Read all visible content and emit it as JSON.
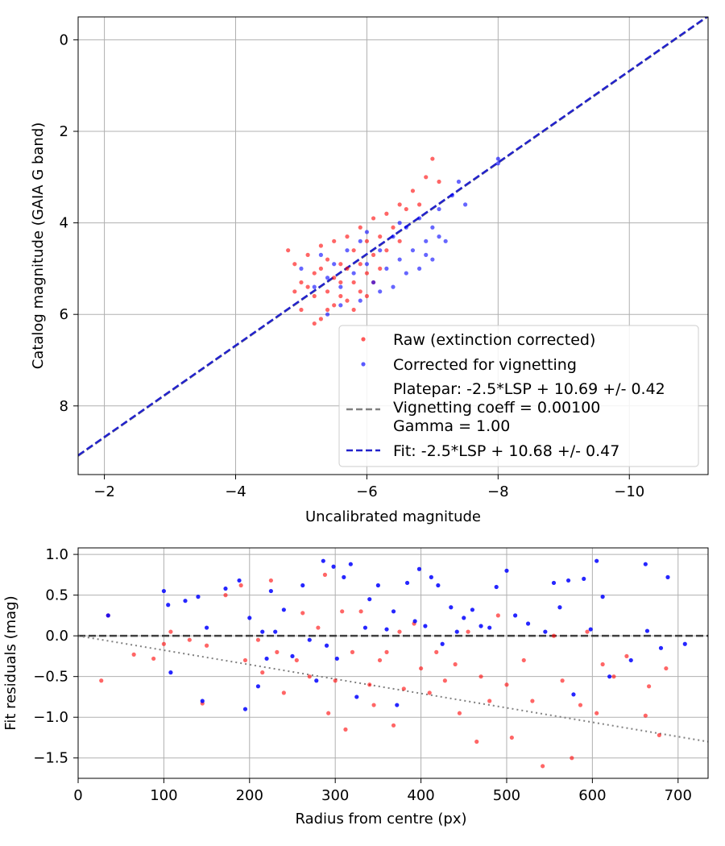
{
  "chart_data": [
    {
      "type": "scatter",
      "xlabel": "Uncalibrated magnitude",
      "ylabel": "Catalog magnitude (GAIA G band)",
      "xlim": [
        -1.6,
        -11.2
      ],
      "ylim": [
        9.5,
        -0.5
      ],
      "x_inverted": true,
      "y_inverted": true,
      "xticks": [
        -2,
        -4,
        -6,
        -8,
        -10
      ],
      "xtick_labels": [
        "−2",
        "−4",
        "−6",
        "−8",
        "−10"
      ],
      "yticks": [
        0,
        2,
        4,
        6,
        8
      ],
      "ytick_labels": [
        "0",
        "2",
        "4",
        "6",
        "8"
      ],
      "grid": true,
      "legend_position": "lower-right",
      "legend": [
        {
          "label": "Raw (extinction corrected)",
          "kind": "dot",
          "color": "#ff0000"
        },
        {
          "label": "Corrected for vignetting",
          "kind": "dot",
          "color": "#0000ff"
        },
        {
          "label": "Platepar: -2.5*LSP + 10.69 +/- 0.42\nVignetting coeff = 0.00100\nGamma = 1.00",
          "kind": "dashed-line",
          "color": "#808080"
        },
        {
          "label": "Fit: -2.5*LSP + 10.68 +/- 0.47",
          "kind": "dashed-line",
          "color": "#2222cc"
        }
      ],
      "series": [
        {
          "name": "Raw (extinction corrected)",
          "color": "#ff0000",
          "points": [
            [
              -4.8,
              4.6
            ],
            [
              -4.9,
              4.9
            ],
            [
              -5.0,
              5.3
            ],
            [
              -5.0,
              5.9
            ],
            [
              -5.1,
              4.7
            ],
            [
              -5.1,
              5.4
            ],
            [
              -5.2,
              5.1
            ],
            [
              -5.2,
              5.6
            ],
            [
              -5.3,
              4.5
            ],
            [
              -5.3,
              5.0
            ],
            [
              -5.3,
              6.1
            ],
            [
              -5.4,
              4.8
            ],
            [
              -5.4,
              5.5
            ],
            [
              -5.5,
              4.4
            ],
            [
              -5.5,
              5.2
            ],
            [
              -5.5,
              5.8
            ],
            [
              -5.6,
              4.9
            ],
            [
              -5.6,
              5.6
            ],
            [
              -5.7,
              4.3
            ],
            [
              -5.7,
              5.0
            ],
            [
              -5.7,
              5.7
            ],
            [
              -5.8,
              4.6
            ],
            [
              -5.8,
              5.3
            ],
            [
              -5.9,
              4.1
            ],
            [
              -5.9,
              4.9
            ],
            [
              -5.9,
              5.5
            ],
            [
              -6.0,
              4.4
            ],
            [
              -6.0,
              5.1
            ],
            [
              -6.1,
              3.9
            ],
            [
              -6.1,
              4.7
            ],
            [
              -6.2,
              4.3
            ],
            [
              -6.2,
              5.0
            ],
            [
              -6.3,
              3.8
            ],
            [
              -6.3,
              4.6
            ],
            [
              -6.4,
              4.1
            ],
            [
              -6.5,
              3.6
            ],
            [
              -6.5,
              4.4
            ],
            [
              -6.6,
              3.7
            ],
            [
              -6.7,
              3.3
            ],
            [
              -6.8,
              3.6
            ],
            [
              -6.9,
              3.0
            ],
            [
              -7.0,
              2.6
            ],
            [
              -7.1,
              3.1
            ],
            [
              -4.9,
              5.5
            ],
            [
              -5.2,
              6.2
            ],
            [
              -5.4,
              5.9
            ],
            [
              -5.6,
              5.3
            ],
            [
              -5.8,
              5.9
            ],
            [
              -6.0,
              5.6
            ],
            [
              -6.1,
              5.3
            ]
          ]
        },
        {
          "name": "Corrected for vignetting",
          "color": "#0000ff",
          "points": [
            [
              -5.0,
              5.0
            ],
            [
              -5.2,
              5.4
            ],
            [
              -5.3,
              4.7
            ],
            [
              -5.4,
              5.2
            ],
            [
              -5.5,
              4.9
            ],
            [
              -5.6,
              5.4
            ],
            [
              -5.7,
              4.6
            ],
            [
              -5.8,
              5.1
            ],
            [
              -5.9,
              4.4
            ],
            [
              -6.0,
              4.9
            ],
            [
              -6.1,
              5.3
            ],
            [
              -6.2,
              4.6
            ],
            [
              -6.3,
              5.0
            ],
            [
              -6.4,
              4.3
            ],
            [
              -6.5,
              4.8
            ],
            [
              -6.6,
              4.1
            ],
            [
              -6.7,
              4.6
            ],
            [
              -6.8,
              3.9
            ],
            [
              -6.9,
              4.4
            ],
            [
              -7.0,
              4.1
            ],
            [
              -7.0,
              4.8
            ],
            [
              -7.1,
              3.7
            ],
            [
              -7.2,
              4.4
            ],
            [
              -7.3,
              3.4
            ],
            [
              -7.4,
              3.1
            ],
            [
              -7.5,
              3.6
            ],
            [
              -8.0,
              2.6
            ],
            [
              -8.0,
              2.7
            ],
            [
              -6.4,
              5.4
            ],
            [
              -6.6,
              5.1
            ],
            [
              -6.8,
              5.0
            ],
            [
              -6.9,
              4.7
            ],
            [
              -5.9,
              5.7
            ],
            [
              -5.6,
              5.8
            ],
            [
              -5.4,
              6.0
            ],
            [
              -6.2,
              5.5
            ],
            [
              -7.1,
              4.3
            ],
            [
              -6.5,
              4.0
            ],
            [
              -6.0,
              4.2
            ]
          ]
        }
      ],
      "lines": [
        {
          "name": "Platepar",
          "color": "#808080",
          "style": "dashed",
          "slope": 1,
          "intercept": 10.69,
          "hidden_under": "Fit"
        },
        {
          "name": "Fit",
          "color": "#2222cc",
          "style": "dashed",
          "slope": 1,
          "intercept": 10.68
        }
      ]
    },
    {
      "type": "scatter",
      "xlabel": "Radius from centre (px)",
      "ylabel": "Fit residuals (mag)",
      "xlim": [
        0,
        735
      ],
      "ylim": [
        -1.75,
        1.08
      ],
      "xticks": [
        0,
        100,
        200,
        300,
        400,
        500,
        600,
        700
      ],
      "xtick_labels": [
        "0",
        "100",
        "200",
        "300",
        "400",
        "500",
        "600",
        "700"
      ],
      "yticks": [
        1.0,
        0.5,
        0.0,
        -0.5,
        -1.0,
        -1.5
      ],
      "ytick_labels": [
        "1.0",
        "0.5",
        "0.0",
        "−0.5",
        "−1.0",
        "−1.5"
      ],
      "grid": true,
      "series": [
        {
          "name": "Raw (extinction corrected)",
          "color": "#ff0000",
          "points": [
            [
              27,
              -0.55
            ],
            [
              35,
              0.25
            ],
            [
              65,
              -0.23
            ],
            [
              88,
              -0.28
            ],
            [
              100,
              -0.1
            ],
            [
              108,
              0.05
            ],
            [
              130,
              -0.05
            ],
            [
              145,
              -0.83
            ],
            [
              150,
              -0.12
            ],
            [
              172,
              0.5
            ],
            [
              190,
              0.62
            ],
            [
              195,
              -0.3
            ],
            [
              210,
              -0.05
            ],
            [
              215,
              -0.45
            ],
            [
              225,
              0.68
            ],
            [
              232,
              -0.2
            ],
            [
              240,
              -0.7
            ],
            [
              255,
              -0.3
            ],
            [
              262,
              0.28
            ],
            [
              270,
              -0.5
            ],
            [
              280,
              0.1
            ],
            [
              288,
              0.75
            ],
            [
              292,
              -0.95
            ],
            [
              300,
              -0.55
            ],
            [
              308,
              0.3
            ],
            [
              312,
              -1.15
            ],
            [
              320,
              -0.2
            ],
            [
              330,
              0.3
            ],
            [
              340,
              -0.6
            ],
            [
              345,
              -0.85
            ],
            [
              352,
              -0.3
            ],
            [
              360,
              -0.2
            ],
            [
              368,
              -1.1
            ],
            [
              375,
              0.05
            ],
            [
              380,
              -0.65
            ],
            [
              392,
              0.15
            ],
            [
              400,
              -0.4
            ],
            [
              410,
              -0.7
            ],
            [
              418,
              -0.2
            ],
            [
              428,
              -0.55
            ],
            [
              440,
              -0.35
            ],
            [
              445,
              -0.95
            ],
            [
              455,
              0.05
            ],
            [
              465,
              -1.3
            ],
            [
              470,
              -0.5
            ],
            [
              480,
              -0.8
            ],
            [
              490,
              0.25
            ],
            [
              500,
              -0.6
            ],
            [
              506,
              -1.25
            ],
            [
              520,
              -0.3
            ],
            [
              530,
              -0.8
            ],
            [
              542,
              -1.6
            ],
            [
              555,
              0.0
            ],
            [
              565,
              -0.55
            ],
            [
              576,
              -1.5
            ],
            [
              586,
              -0.85
            ],
            [
              594,
              0.05
            ],
            [
              605,
              -0.95
            ],
            [
              612,
              -0.35
            ],
            [
              625,
              -0.5
            ],
            [
              640,
              -0.25
            ],
            [
              662,
              -0.98
            ],
            [
              666,
              -0.62
            ],
            [
              678,
              -1.22
            ],
            [
              686,
              -0.4
            ]
          ]
        },
        {
          "name": "Corrected for vignetting",
          "color": "#0000ff",
          "points": [
            [
              35,
              0.25
            ],
            [
              100,
              0.55
            ],
            [
              105,
              0.38
            ],
            [
              108,
              -0.45
            ],
            [
              125,
              0.43
            ],
            [
              140,
              0.48
            ],
            [
              145,
              -0.8
            ],
            [
              150,
              0.1
            ],
            [
              172,
              0.58
            ],
            [
              188,
              0.68
            ],
            [
              195,
              -0.9
            ],
            [
              200,
              0.22
            ],
            [
              210,
              -0.62
            ],
            [
              215,
              0.05
            ],
            [
              220,
              -0.28
            ],
            [
              225,
              0.55
            ],
            [
              230,
              0.05
            ],
            [
              240,
              0.32
            ],
            [
              250,
              -0.25
            ],
            [
              262,
              0.62
            ],
            [
              270,
              -0.05
            ],
            [
              278,
              -0.55
            ],
            [
              286,
              0.92
            ],
            [
              290,
              -0.12
            ],
            [
              298,
              0.85
            ],
            [
              302,
              -0.28
            ],
            [
              310,
              0.72
            ],
            [
              318,
              0.88
            ],
            [
              325,
              -0.75
            ],
            [
              335,
              0.1
            ],
            [
              340,
              0.45
            ],
            [
              350,
              0.62
            ],
            [
              360,
              0.08
            ],
            [
              368,
              0.3
            ],
            [
              372,
              -0.85
            ],
            [
              384,
              0.65
            ],
            [
              393,
              0.18
            ],
            [
              398,
              0.82
            ],
            [
              405,
              0.12
            ],
            [
              412,
              0.72
            ],
            [
              420,
              0.62
            ],
            [
              425,
              -0.1
            ],
            [
              435,
              0.35
            ],
            [
              442,
              0.05
            ],
            [
              450,
              0.22
            ],
            [
              460,
              0.32
            ],
            [
              470,
              0.12
            ],
            [
              480,
              0.1
            ],
            [
              488,
              0.6
            ],
            [
              500,
              0.8
            ],
            [
              510,
              0.25
            ],
            [
              525,
              0.15
            ],
            [
              545,
              0.05
            ],
            [
              555,
              0.65
            ],
            [
              562,
              0.35
            ],
            [
              572,
              0.68
            ],
            [
              578,
              -0.72
            ],
            [
              590,
              0.7
            ],
            [
              598,
              0.08
            ],
            [
              605,
              0.92
            ],
            [
              612,
              0.48
            ],
            [
              620,
              -0.5
            ],
            [
              645,
              -0.3
            ],
            [
              662,
              0.88
            ],
            [
              664,
              0.06
            ],
            [
              680,
              -0.15
            ],
            [
              688,
              0.72
            ],
            [
              708,
              -0.1
            ]
          ]
        }
      ],
      "lines": [
        {
          "name": "zero",
          "color": "#404040",
          "style": "dashed",
          "points": [
            [
              0,
              0
            ],
            [
              735,
              0
            ]
          ]
        },
        {
          "name": "vignetting-trend",
          "color": "#808080",
          "style": "dotted",
          "points": [
            [
              0,
              0.0
            ],
            [
              735,
              -1.3
            ]
          ]
        }
      ]
    }
  ]
}
